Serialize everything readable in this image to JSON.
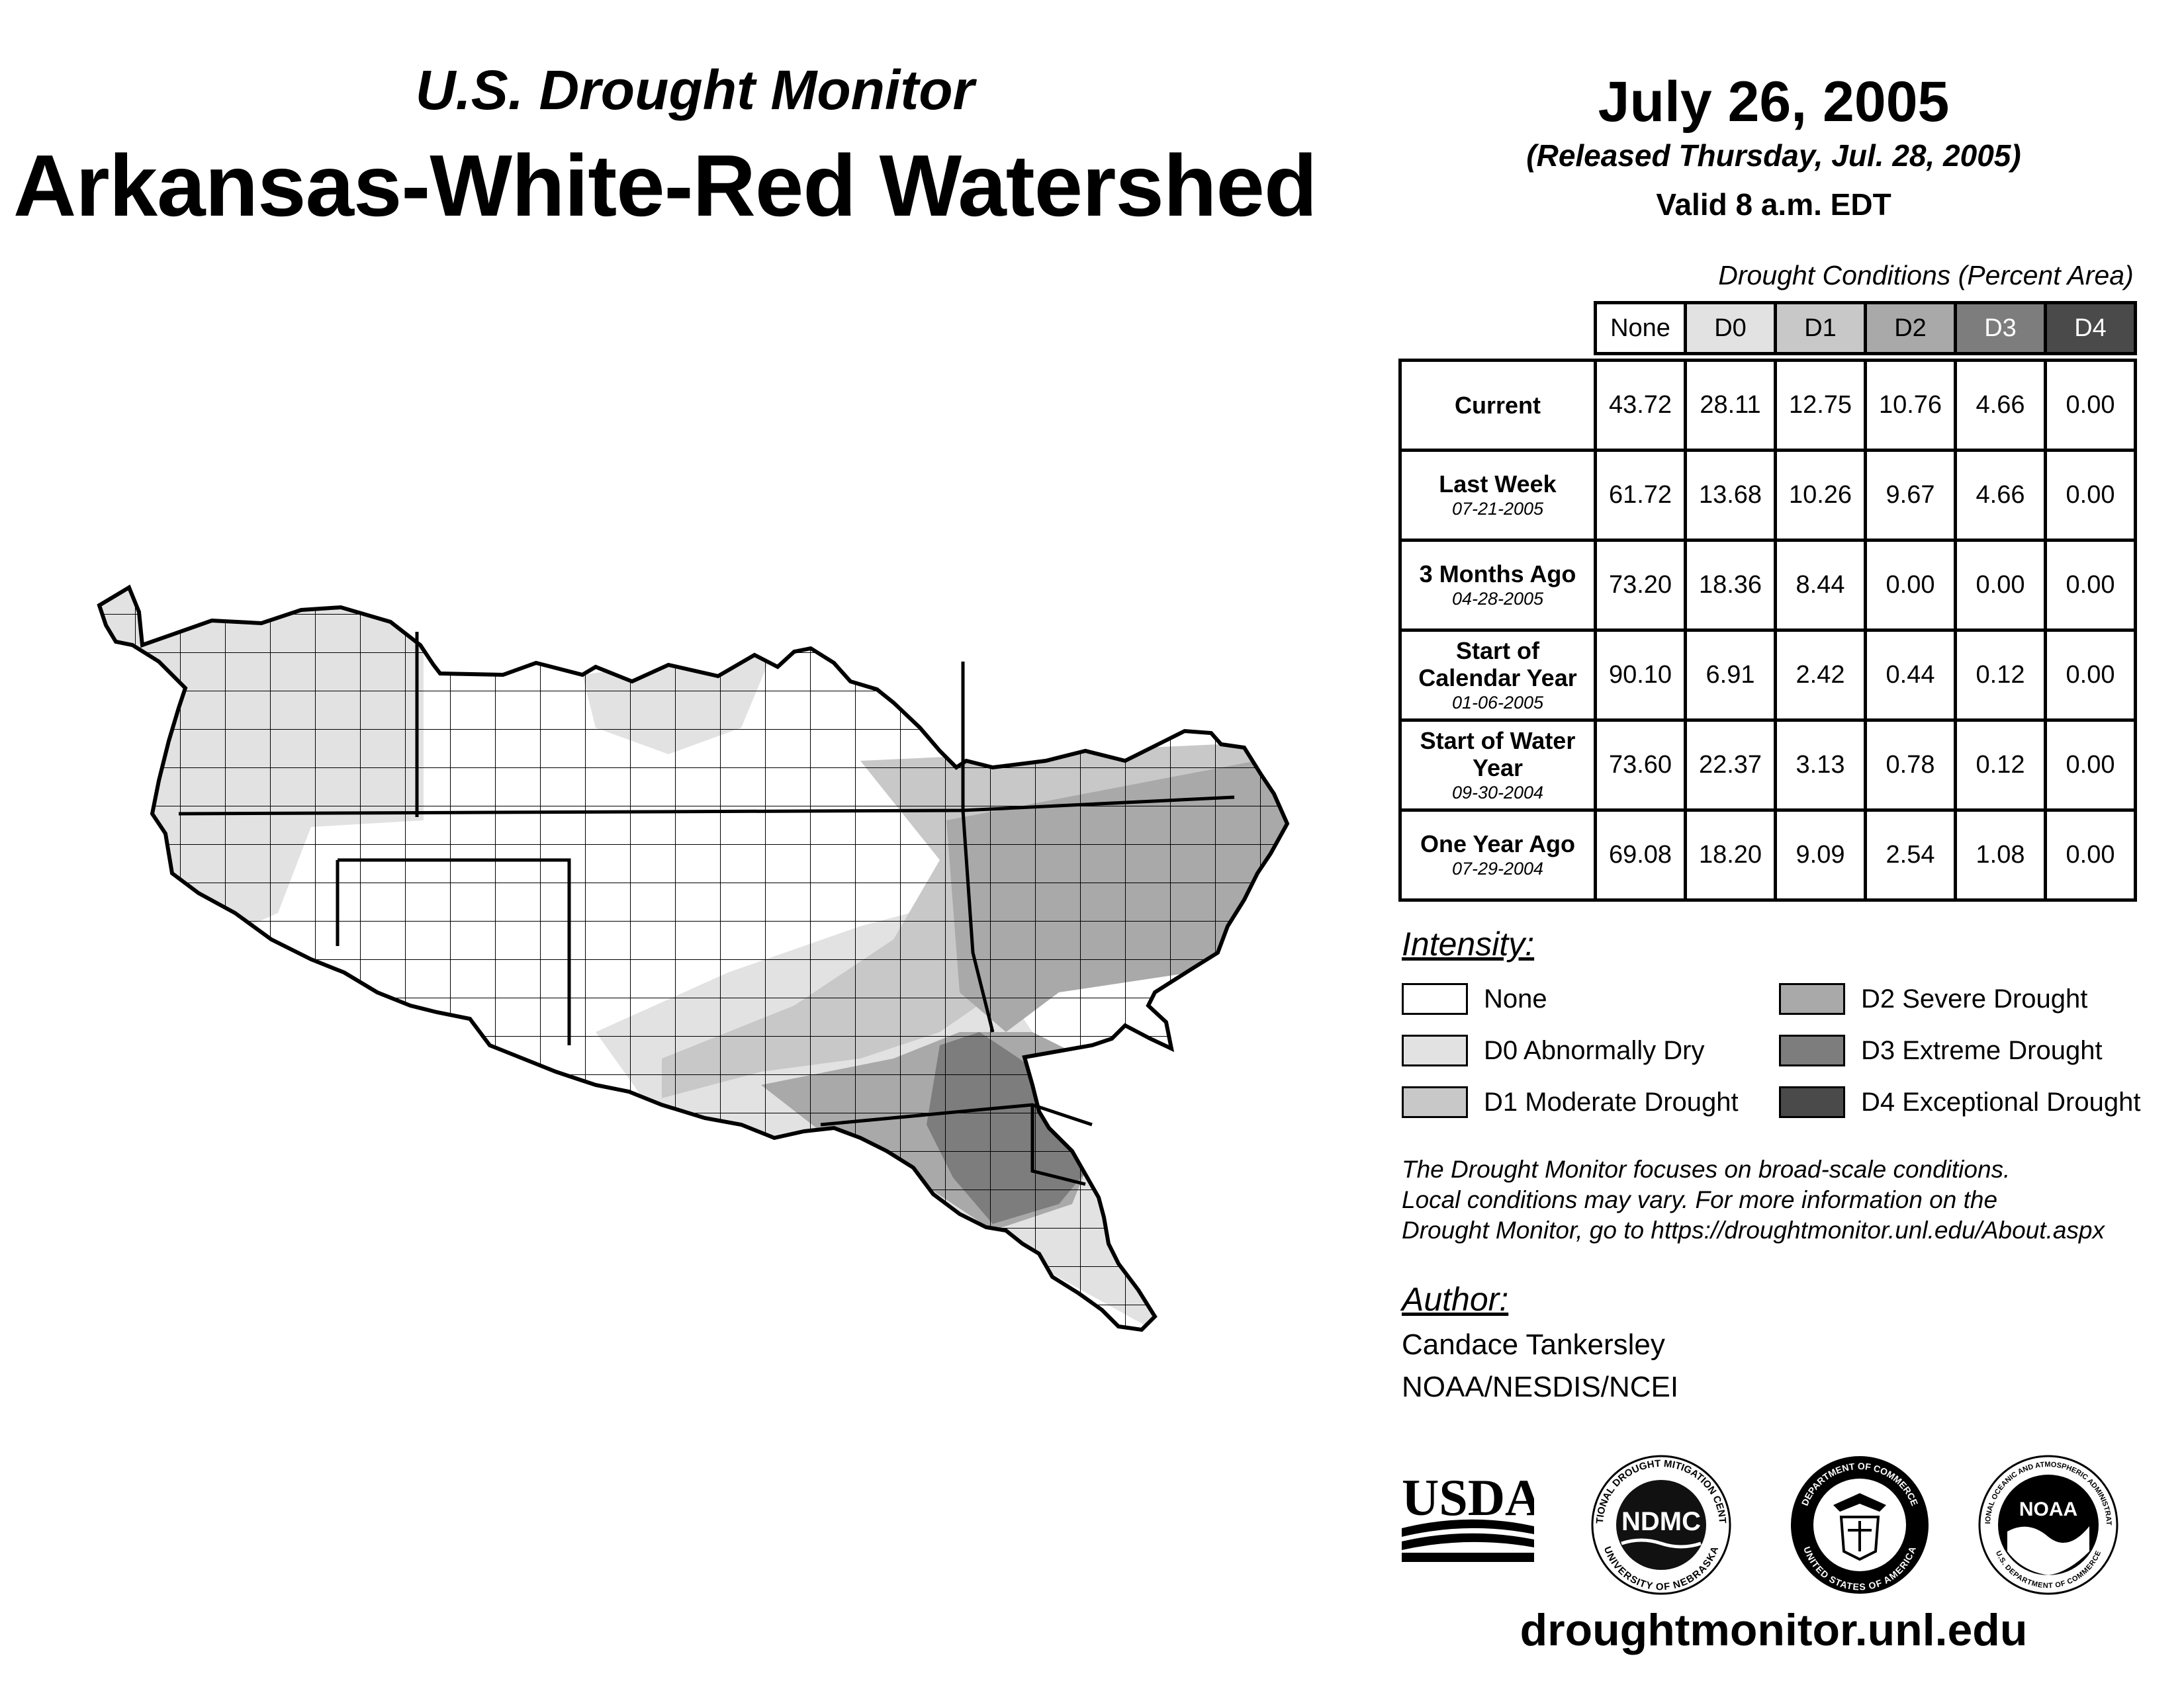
{
  "header": {
    "subtitle": "U.S. Drought Monitor",
    "title": "Arkansas-White-Red Watershed",
    "date": "July 26, 2005",
    "released": "(Released Thursday, Jul. 28, 2005)",
    "valid": "Valid 8 a.m. EDT"
  },
  "table": {
    "caption": "Drought Conditions (Percent Area)",
    "columns": [
      "None",
      "D0",
      "D1",
      "D2",
      "D3",
      "D4"
    ],
    "rows": [
      {
        "label": "Current",
        "date": "",
        "values": [
          "43.72",
          "28.11",
          "12.75",
          "10.76",
          "4.66",
          "0.00"
        ]
      },
      {
        "label": "Last Week",
        "date": "07-21-2005",
        "values": [
          "61.72",
          "13.68",
          "10.26",
          "9.67",
          "4.66",
          "0.00"
        ]
      },
      {
        "label": "3 Months Ago",
        "date": "04-28-2005",
        "values": [
          "73.20",
          "18.36",
          "8.44",
          "0.00",
          "0.00",
          "0.00"
        ]
      },
      {
        "label": "Start of Calendar Year",
        "date": "01-06-2005",
        "values": [
          "90.10",
          "6.91",
          "2.42",
          "0.44",
          "0.12",
          "0.00"
        ]
      },
      {
        "label": "Start of Water Year",
        "date": "09-30-2004",
        "values": [
          "73.60",
          "22.37",
          "3.13",
          "0.78",
          "0.12",
          "0.00"
        ]
      },
      {
        "label": "One Year Ago",
        "date": "07-29-2004",
        "values": [
          "69.08",
          "18.20",
          "9.09",
          "2.54",
          "1.08",
          "0.00"
        ]
      }
    ]
  },
  "legend": {
    "title": "Intensity:",
    "items": [
      {
        "label": "None",
        "color": "#ffffff"
      },
      {
        "label": "D0 Abnormally Dry",
        "color": "#e2e2e2"
      },
      {
        "label": "D1 Moderate Drought",
        "color": "#c8c8c8"
      },
      {
        "label": "D2 Severe Drought",
        "color": "#a9a9a9"
      },
      {
        "label": "D3 Extreme Drought",
        "color": "#7d7d7d"
      },
      {
        "label": "D4 Exceptional Drought",
        "color": "#4a4a4a"
      }
    ]
  },
  "note": {
    "line1": "The Drought Monitor focuses on broad-scale conditions.",
    "line2": "Local conditions may vary. For more information on the",
    "line3": "Drought Monitor, go to https://droughtmonitor.unl.edu/About.aspx"
  },
  "author": {
    "title": "Author:",
    "name": "Candace Tankersley",
    "org": "NOAA/NESDIS/NCEI"
  },
  "logos": {
    "usda": "USDA",
    "ndmc": "NDMC",
    "ndmc_top": "NATIONAL DROUGHT MITIGATION CENTER",
    "ndmc_bottom": "UNIVERSITY OF NEBRASKA",
    "doc_top": "DEPARTMENT OF COMMERCE",
    "doc_bottom": "UNITED STATES OF AMERICA",
    "noaa": "NOAA",
    "noaa_ring": "NATIONAL OCEANIC AND ATMOSPHERIC ADMINISTRATION",
    "noaa_bottom": "U.S. DEPARTMENT OF COMMERCE"
  },
  "footer": {
    "site": "droughtmonitor.unl.edu"
  }
}
